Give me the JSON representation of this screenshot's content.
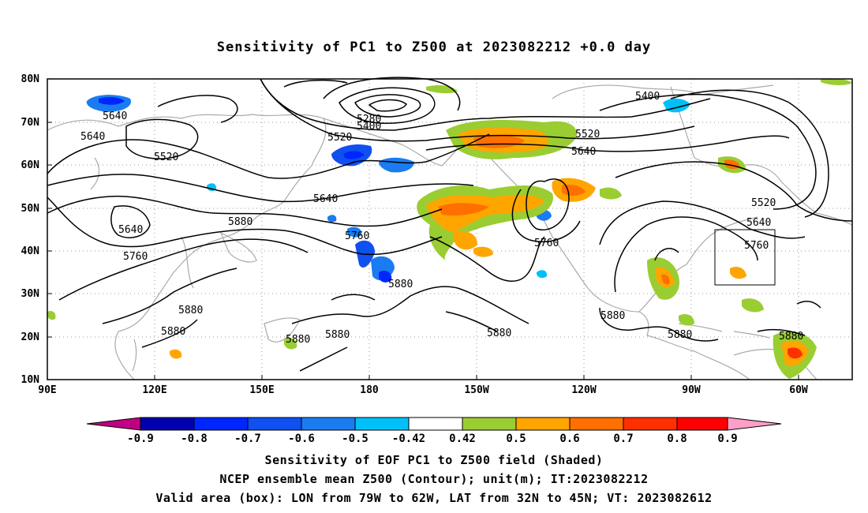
{
  "title": "Sensitivity of PC1 to Z500 at 2023082212 +0.0 day",
  "map": {
    "lat_labels": [
      "80N",
      "70N",
      "60N",
      "50N",
      "40N",
      "30N",
      "20N",
      "10N"
    ],
    "lon_labels": [
      "90E",
      "120E",
      "150E",
      "180",
      "150W",
      "120W",
      "90W",
      "60W"
    ],
    "contour_labels": [
      {
        "text": "5640"
      },
      {
        "text": "5640"
      },
      {
        "text": "5520"
      },
      {
        "text": "5280"
      },
      {
        "text": "5400"
      },
      {
        "text": "5520"
      },
      {
        "text": "5400"
      },
      {
        "text": "5520"
      },
      {
        "text": "5640"
      },
      {
        "text": "5640"
      },
      {
        "text": "5640"
      },
      {
        "text": "5880"
      },
      {
        "text": "5760"
      },
      {
        "text": "5760"
      },
      {
        "text": "5760"
      },
      {
        "text": "5520"
      },
      {
        "text": "5640"
      },
      {
        "text": "5760"
      },
      {
        "text": "5880"
      },
      {
        "text": "5880"
      },
      {
        "text": "5880"
      },
      {
        "text": "5880"
      },
      {
        "text": "5880"
      },
      {
        "text": "5880"
      },
      {
        "text": "5880"
      },
      {
        "text": "5880"
      },
      {
        "text": "5880"
      }
    ]
  },
  "colorbar": {
    "labels": [
      "-0.9",
      "-0.8",
      "-0.7",
      "-0.6",
      "-0.5",
      "-0.42",
      "0.42",
      "0.5",
      "0.6",
      "0.7",
      "0.8",
      "0.9"
    ],
    "colors": [
      "#c00082",
      "#0000b0",
      "#0026ff",
      "#1050f0",
      "#1a7cf0",
      "#00c0f8",
      "#ffffff",
      "#9acd32",
      "#ffa500",
      "#ff7000",
      "#ff3000",
      "#ff0000",
      "#ff9ec8"
    ]
  },
  "footer": {
    "line1": "Sensitivity of EOF PC1 to Z500 field (Shaded)",
    "line2": "NCEP ensemble mean Z500 (Contour); unit(m); IT:2023082212",
    "line3": "Valid area (box): LON from 79W to 62W, LAT from 32N to 45N; VT: 2023082612"
  }
}
